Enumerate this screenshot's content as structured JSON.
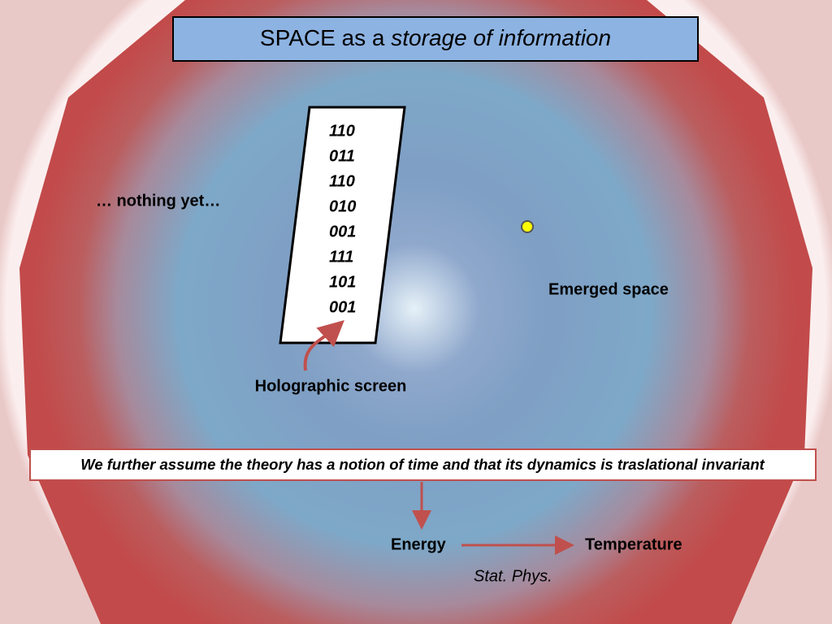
{
  "title": {
    "text": "SPACE as a",
    "emphasis": "storage of information"
  },
  "screen_bits": [
    "110",
    "011",
    "110",
    "010",
    "001",
    "111",
    "101",
    "001"
  ],
  "labels": {
    "nothing": "… nothing yet…",
    "emerged": "Emerged space",
    "holographic": "Holographic screen"
  },
  "assumption": "We further assume the theory has a notion of time and that its dynamics is traslational invariant",
  "flow": {
    "from": "Energy",
    "to": "Temperature",
    "via": "Stat. Phys."
  }
}
